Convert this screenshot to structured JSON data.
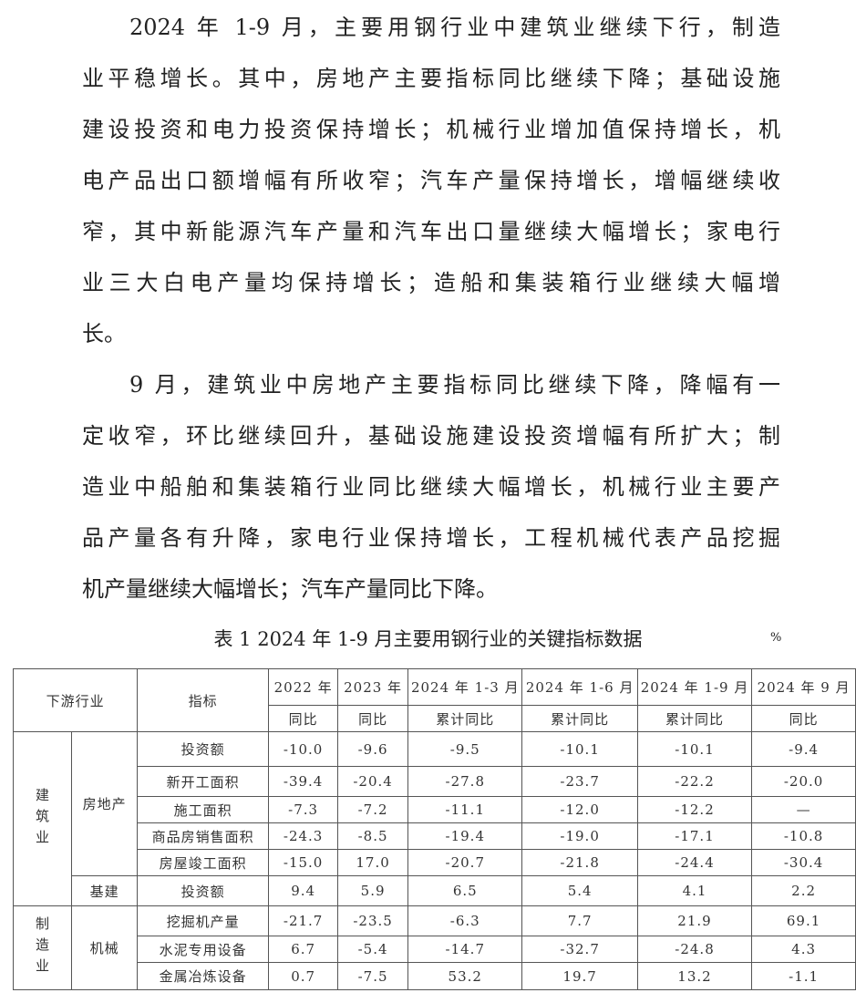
{
  "paragraphs": [
    [
      "2024 年 1-9 月，主要用钢行业中建筑业继续下行，制造",
      "业平稳增长。其中，房地产主要指标同比继续下降；基础设施",
      "建设投资和电力投资保持增长；机械行业增加值保持增长，机",
      "电产品出口额增幅有所收窄；汽车产量保持增长，增幅继续收",
      "窄，其中新能源汽车产量和汽车出口量继续大幅增长；家电行",
      "业三大白电产量均保持增长；造船和集装箱行业继续大幅增",
      "长。"
    ],
    [
      "9 月，建筑业中房地产主要指标同比继续下降，降幅有一",
      "定收窄，环比继续回升，基础设施建设投资增幅有所扩大；制",
      "造业中船舶和集装箱行业同比继续大幅增长，机械行业主要产",
      "品产量各有升降，家电行业保持增长，工程机械代表产品挖掘",
      "机产量继续大幅增长；汽车产量同比下降。"
    ]
  ],
  "table": {
    "caption": "表 1 2024 年 1-9 月主要用钢行业的关键指标数据",
    "unit": "%",
    "header": {
      "industry": "下游行业",
      "indicator": "指标",
      "periods": [
        "2022 年",
        "2023 年",
        "2024 年 1-3 月",
        "2024 年 1-6 月",
        "2024 年 1-9 月",
        "2024 年 9 月"
      ],
      "measures": [
        "同比",
        "同比",
        "累计同比",
        "累计同比",
        "累计同比",
        "同比"
      ]
    },
    "groups": {
      "construction": "建筑业",
      "manufacturing": "制造业",
      "real_estate": "房地产",
      "infrastructure": "基建",
      "machinery": "机械"
    },
    "rows": [
      {
        "indicator": "投资额",
        "values": [
          "-10.0",
          "-9.6",
          "-9.5",
          "-10.1",
          "-10.1",
          "-9.4"
        ]
      },
      {
        "indicator": "新开工面积",
        "values": [
          "-39.4",
          "-20.4",
          "-27.8",
          "-23.7",
          "-22.2",
          "-20.0"
        ]
      },
      {
        "indicator": "施工面积",
        "values": [
          "-7.3",
          "-7.2",
          "-11.1",
          "-12.0",
          "-12.2",
          "—"
        ]
      },
      {
        "indicator": "商品房销售面积",
        "values": [
          "-24.3",
          "-8.5",
          "-19.4",
          "-19.0",
          "-17.1",
          "-10.8"
        ]
      },
      {
        "indicator": "房屋竣工面积",
        "values": [
          "-15.0",
          "17.0",
          "-20.7",
          "-21.8",
          "-24.4",
          "-30.4"
        ]
      },
      {
        "indicator": "投资额",
        "values": [
          "9.4",
          "5.9",
          "6.5",
          "5.4",
          "4.1",
          "2.2"
        ]
      },
      {
        "indicator": "挖掘机产量",
        "values": [
          "-21.7",
          "-23.5",
          "-6.3",
          "7.7",
          "21.9",
          "69.1"
        ]
      },
      {
        "indicator": "水泥专用设备",
        "values": [
          "6.7",
          "-5.4",
          "-14.7",
          "-32.7",
          "-24.8",
          "4.3"
        ]
      },
      {
        "indicator": "金属冶炼设备",
        "values": [
          "0.7",
          "-7.5",
          "53.2",
          "19.7",
          "13.2",
          "-1.1"
        ]
      }
    ]
  }
}
